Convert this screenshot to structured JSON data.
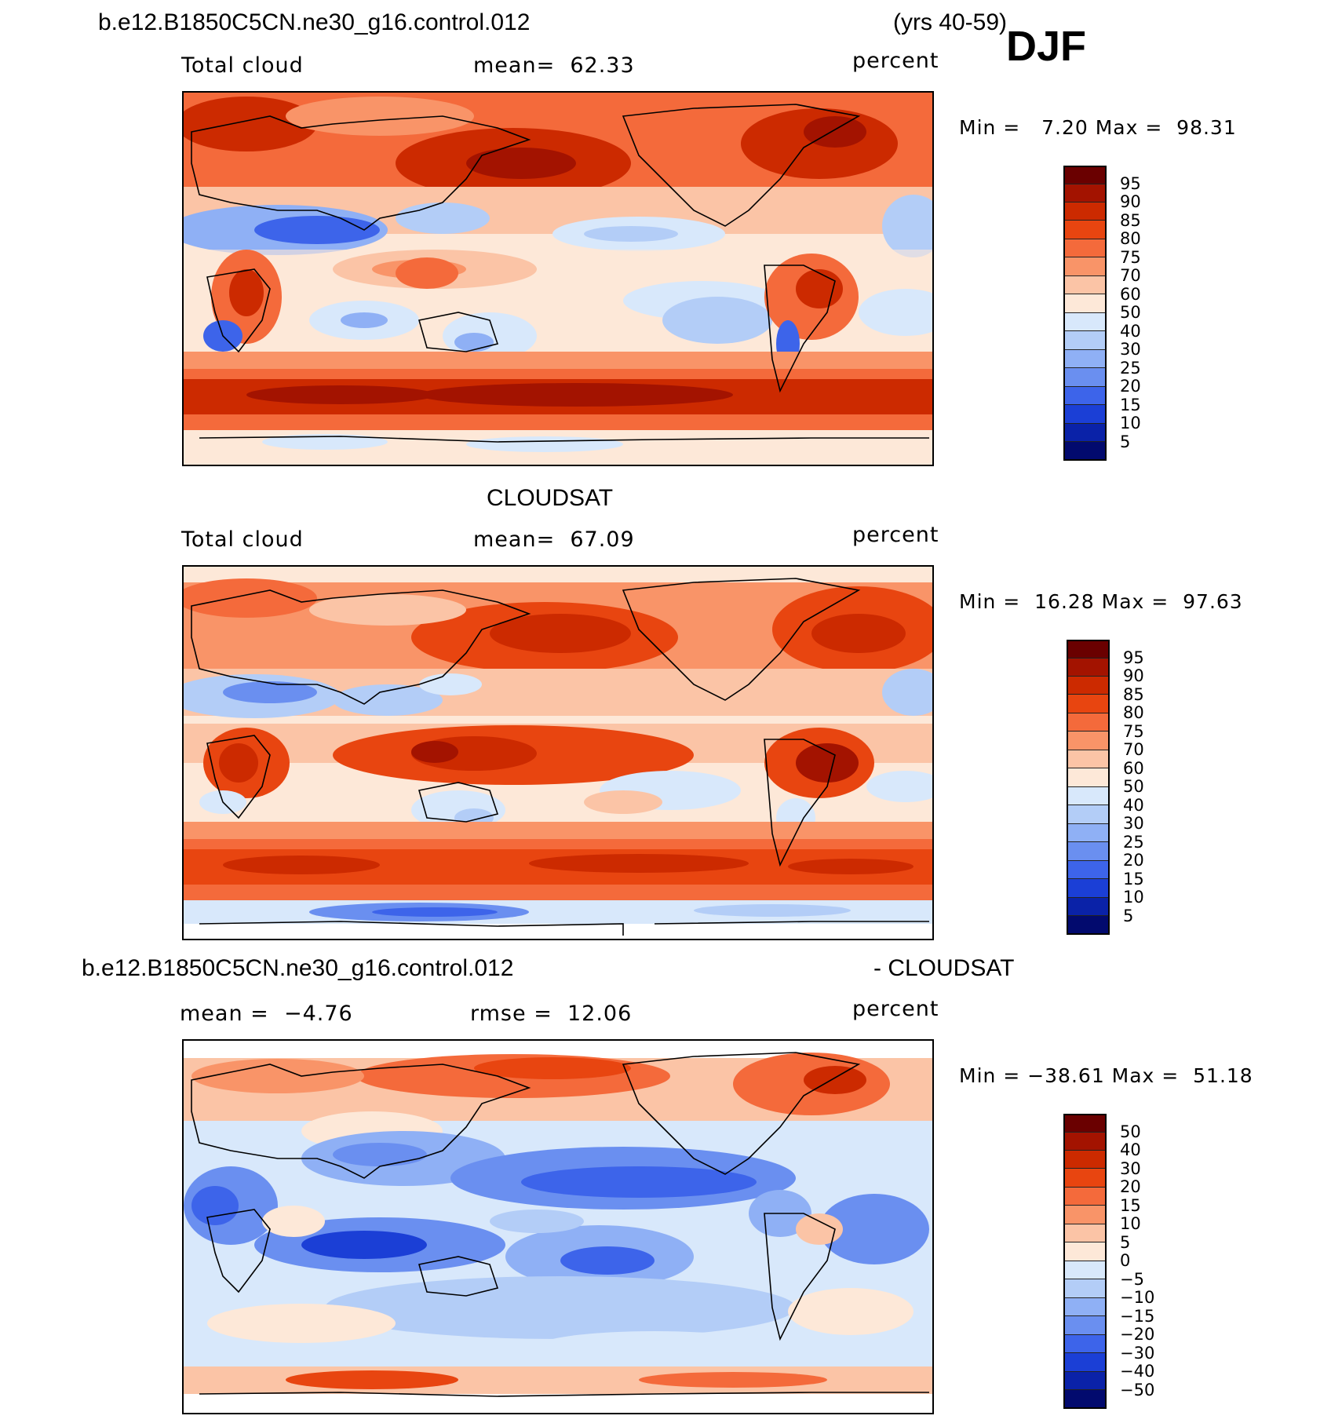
{
  "header": {
    "case_name": "b.e12.B1850C5CN.ne30_g16.control.012",
    "years": "(yrs 40-59)",
    "season": "DJF"
  },
  "panels": [
    {
      "id": "model",
      "left_label": "Total cloud",
      "mean_label": "mean=  62.33",
      "units": "percent",
      "minmax": "Min =   7.20 Max =  98.31",
      "levels": [
        "95",
        "90",
        "85",
        "80",
        "75",
        "70",
        "60",
        "50",
        "40",
        "30",
        "25",
        "20",
        "15",
        "10",
        "5"
      ]
    },
    {
      "id": "obs",
      "title": "CLOUDSAT",
      "left_label": "Total cloud",
      "mean_label": "mean=  67.09",
      "units": "percent",
      "minmax": "Min =  16.28 Max =  97.63",
      "levels": [
        "95",
        "90",
        "85",
        "80",
        "75",
        "70",
        "60",
        "50",
        "40",
        "30",
        "25",
        "20",
        "15",
        "10",
        "5"
      ]
    },
    {
      "id": "diff",
      "title_left": "b.e12.B1850C5CN.ne30_g16.control.012",
      "title_right": "- CLOUDSAT",
      "left_label": "mean =  −4.76",
      "mean_label": "rmse =  12.06",
      "units": "percent",
      "minmax": "Min = −38.61 Max =  51.18",
      "levels": [
        "50",
        "40",
        "30",
        "20",
        "15",
        "10",
        "5",
        "0",
        "−5",
        "−10",
        "−15",
        "−20",
        "−30",
        "−40",
        "−50"
      ]
    }
  ],
  "colors": {
    "abs_scale": [
      "#6a0000",
      "#a31300",
      "#cc2a00",
      "#e84510",
      "#f46a3b",
      "#f99468",
      "#fbc4a6",
      "#fde8d8",
      "#d8e8fb",
      "#b3cdf7",
      "#8fb0f5",
      "#6a8ff0",
      "#3d64ea",
      "#1b3fd6",
      "#0a22a8",
      "#020a6e"
    ],
    "diff_scale": [
      "#6a0000",
      "#a31300",
      "#cc2a00",
      "#e84510",
      "#f46a3b",
      "#f99468",
      "#fbc4a6",
      "#fde8d8",
      "#d8e8fb",
      "#b3cdf7",
      "#8fb0f5",
      "#6a8ff0",
      "#3d64ea",
      "#1b3fd6",
      "#0a22a8",
      "#020a6e"
    ]
  },
  "chart_data": [
    {
      "type": "heatmap",
      "title": "Total cloud",
      "subtitle": "b.e12.B1850C5CN.ne30_g16.control.012 (yrs 40-59) DJF",
      "units": "percent",
      "mean": 62.33,
      "min": 7.2,
      "max": 98.31,
      "contour_levels": [
        5,
        10,
        15,
        20,
        25,
        30,
        40,
        50,
        60,
        70,
        75,
        80,
        85,
        90,
        95
      ]
    },
    {
      "type": "heatmap",
      "title": "CLOUDSAT Total cloud",
      "units": "percent",
      "mean": 67.09,
      "min": 16.28,
      "max": 97.63,
      "contour_levels": [
        5,
        10,
        15,
        20,
        25,
        30,
        40,
        50,
        60,
        70,
        75,
        80,
        85,
        90,
        95
      ]
    },
    {
      "type": "heatmap",
      "title": "b.e12.B1850C5CN.ne30_g16.control.012 - CLOUDSAT",
      "units": "percent",
      "mean": -4.76,
      "rmse": 12.06,
      "min": -38.61,
      "max": 51.18,
      "contour_levels": [
        -50,
        -40,
        -30,
        -20,
        -15,
        -10,
        -5,
        0,
        5,
        10,
        15,
        20,
        30,
        40,
        50
      ]
    }
  ]
}
